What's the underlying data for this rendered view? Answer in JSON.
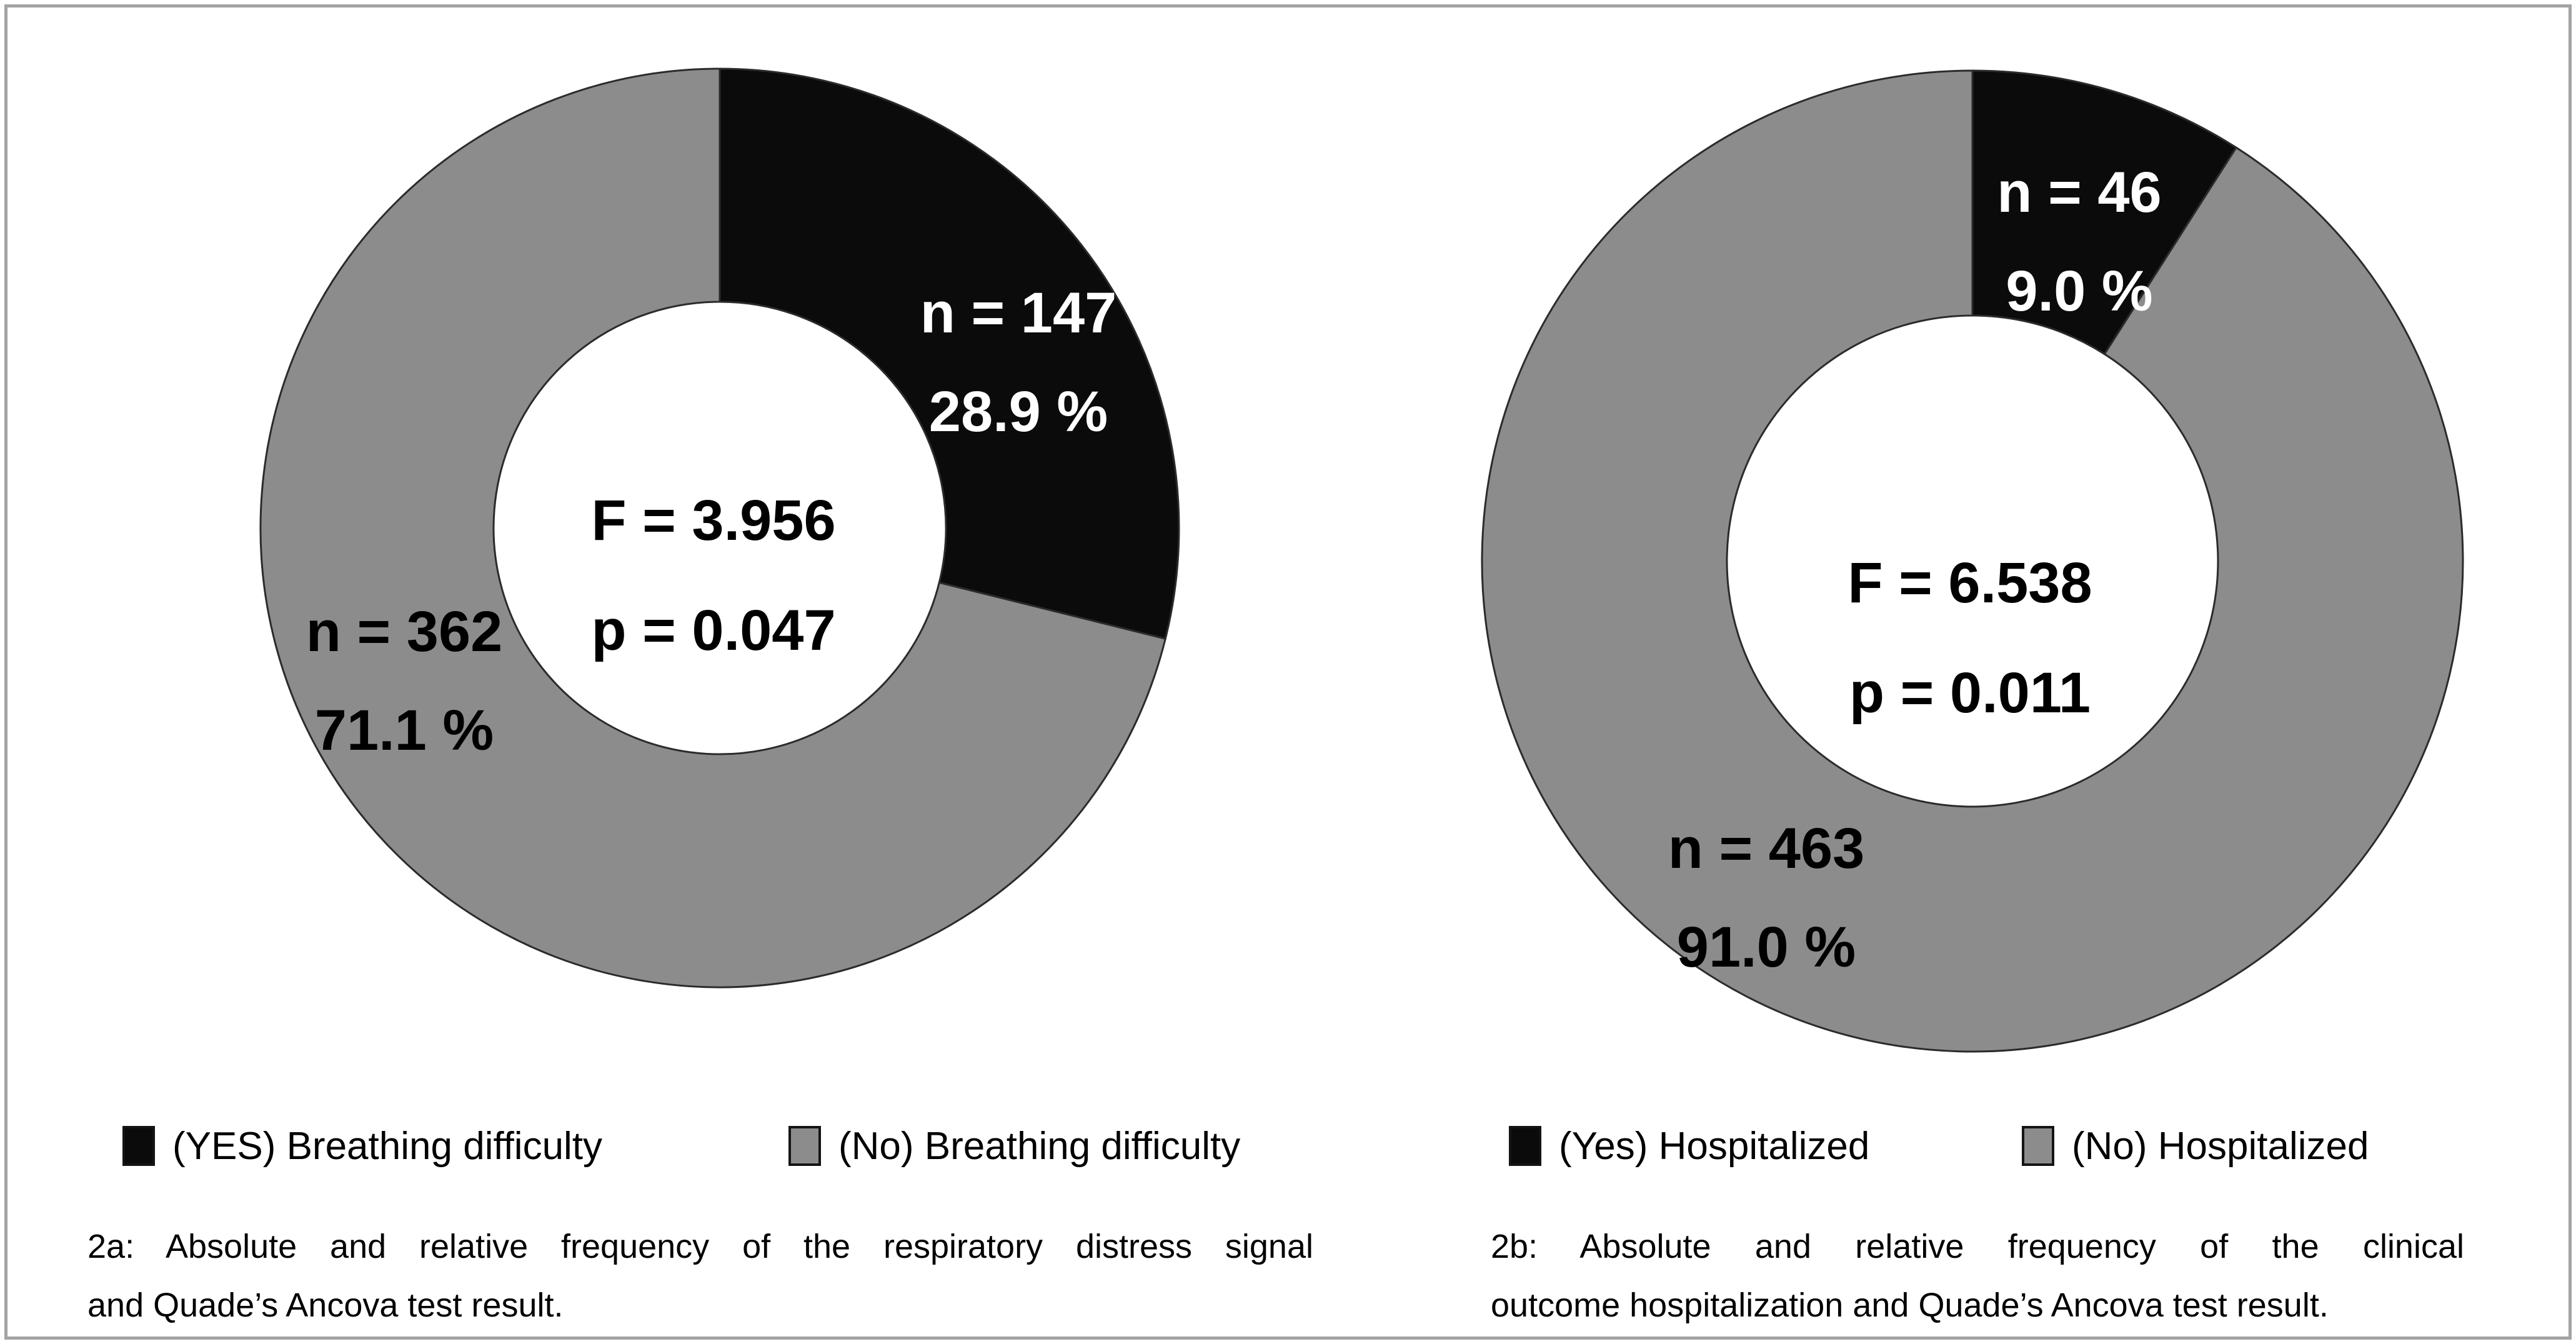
{
  "figure": {
    "background": "#ffffff",
    "frame_color": "#a3a3a3",
    "slice_outline_color": "#2b2b2b"
  },
  "chart_data": [
    {
      "type": "pie",
      "subtype": "donut",
      "title": "",
      "categories": [
        "(YES) Breathing difficulty",
        "(No) Breathing difficulty"
      ],
      "values": [
        147,
        362
      ],
      "percentages": [
        28.9,
        71.1
      ],
      "colors": [
        "#0b0b0b",
        "#8c8c8c"
      ],
      "start_angle_deg": 0,
      "direction": "clockwise",
      "hole_ratio": 0.49,
      "legend_position": "bottom",
      "slice_labels": [
        [
          "n = 147",
          "28.9 %"
        ],
        [
          "n = 362",
          "71.1 %"
        ]
      ],
      "slice_label_colors": [
        "#ffffff",
        "#000000"
      ],
      "center_text": [
        "F = 3.956",
        "p = 0.047"
      ],
      "caption_lines": [
        "2a: Absolute and relative frequency of the respiratory distress signal",
        "and Quade’s Ancova test result."
      ],
      "caption": "2a: Absolute and relative frequency of the respiratory distress signal and Quade’s Ancova test result."
    },
    {
      "type": "pie",
      "subtype": "donut",
      "title": "",
      "categories": [
        "(Yes) Hospitalized",
        "(No) Hospitalized"
      ],
      "values": [
        46,
        463
      ],
      "percentages": [
        9.0,
        91.0
      ],
      "colors": [
        "#0b0b0b",
        "#8c8c8c"
      ],
      "start_angle_deg": 0,
      "direction": "clockwise",
      "hole_ratio": 0.5,
      "legend_position": "bottom",
      "slice_labels": [
        [
          "n = 46",
          "9.0 %"
        ],
        [
          "n = 463",
          "91.0 %"
        ]
      ],
      "slice_label_colors": [
        "#ffffff",
        "#000000"
      ],
      "center_text": [
        "F = 6.538",
        "p = 0.011"
      ],
      "caption_lines": [
        "2b: Absolute and relative frequency of the clinical",
        "outcome hospitalization and Quade’s Ancova test result."
      ],
      "caption": "2b: Absolute and relative frequency of the clinical outcome hospitalization and Quade’s Ancova test result."
    }
  ]
}
